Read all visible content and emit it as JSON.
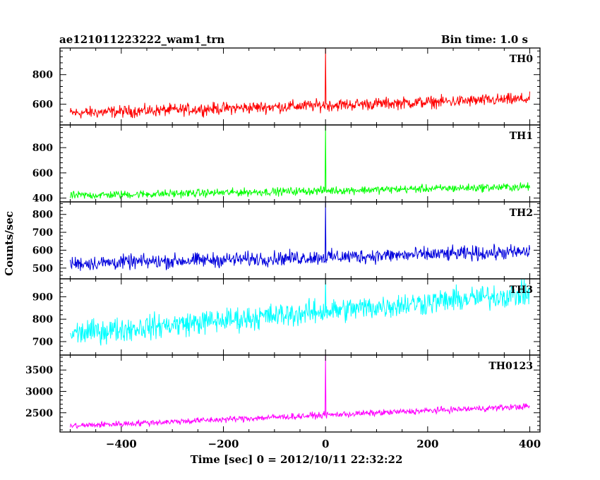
{
  "header": {
    "title": "ae121011223222_wam1_trn",
    "bin_time": "Bin time: 1.0 s"
  },
  "axes": {
    "xlabel": "Time [sec] 0 = 2012/10/11 22:32:22",
    "ylabel": "Counts/sec"
  },
  "chart_data": {
    "type": "line",
    "title": "ae121011223222_wam1_trn",
    "xlabel": "Time [sec] 0 = 2012/10/11 22:32:22",
    "ylabel": "Counts/sec",
    "xlim": [
      -520,
      420
    ],
    "x_ticks": [
      -400,
      -200,
      0,
      200,
      400
    ],
    "x_tick_labels": [
      "−400",
      "−200",
      "0",
      "200",
      "400"
    ],
    "x_range": [
      -500,
      400
    ],
    "bin_time_s": 1.0,
    "grid": false,
    "panels": [
      {
        "name": "TH0",
        "color": "#ff0000",
        "ylim": [
          460,
          980
        ],
        "yticks": [
          600,
          800
        ],
        "trend_start": 540,
        "trend_end": 635,
        "noise_halfwidth": 45,
        "spike_at": 0,
        "spike_peak": 1000
      },
      {
        "name": "TH1",
        "color": "#00ff00",
        "ylim": [
          370,
          980
        ],
        "yticks": [
          400,
          600,
          800
        ],
        "trend_start": 420,
        "trend_end": 490,
        "noise_halfwidth": 35,
        "spike_at": 0,
        "spike_peak": 1000
      },
      {
        "name": "TH2",
        "color": "#0000dd",
        "ylim": [
          440,
          870
        ],
        "yticks": [
          500,
          600,
          700,
          800
        ],
        "trend_start": 525,
        "trend_end": 590,
        "noise_halfwidth": 45,
        "spike_at": 0,
        "spike_peak": 870
      },
      {
        "name": "TH3",
        "color": "#00ffff",
        "ylim": [
          640,
          980
        ],
        "yticks": [
          700,
          800,
          900
        ],
        "trend_start": 735,
        "trend_end": 915,
        "noise_halfwidth": 60,
        "spike_at": 0,
        "spike_peak": 980
      },
      {
        "name": "TH0123",
        "color": "#ff00ff",
        "ylim": [
          2050,
          3850
        ],
        "yticks": [
          2500,
          3000,
          3500
        ],
        "trend_start": 2190,
        "trend_end": 2650,
        "noise_halfwidth": 80,
        "spike_at": 0,
        "spike_peak": 3850
      }
    ]
  }
}
